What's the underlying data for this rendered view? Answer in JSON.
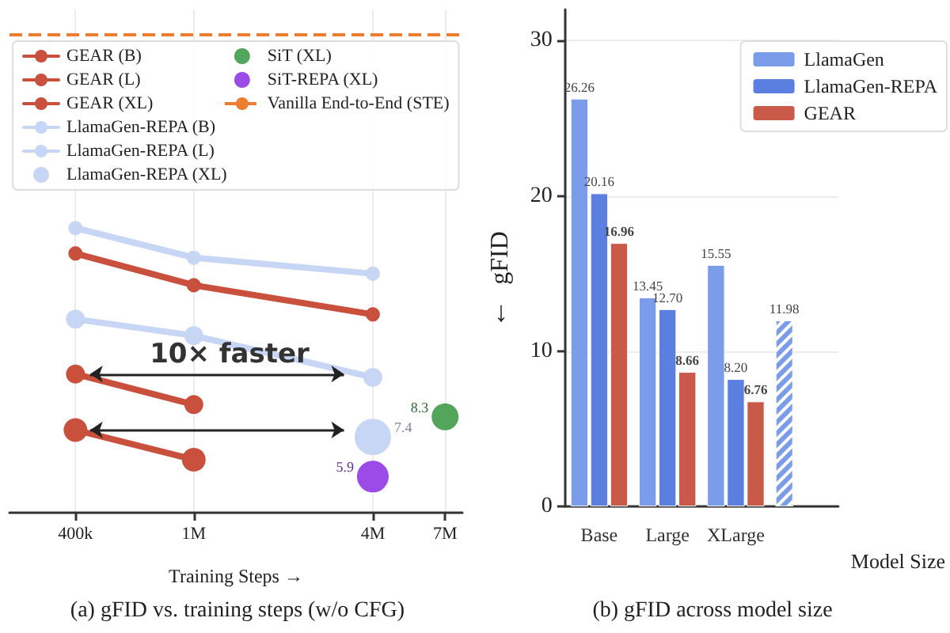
{
  "chart_data": [
    {
      "type": "line",
      "title": "(a) gFID vs. training steps (w/o CFG)",
      "xlabel": "Training Steps →",
      "log": "xy",
      "ylim": [
        4.8,
        85
      ],
      "tick_labels": "x",
      "xlim": [
        240000,
        8000000
      ],
      "xticks": [
        {
          "value": 400000,
          "label": "400k"
        },
        {
          "value": 1000000,
          "label": "1M"
        },
        {
          "value": 4000000,
          "label": "4M"
        },
        {
          "value": 7000000,
          "label": "7M"
        }
      ],
      "grid": "x",
      "legend": "top",
      "marker": "circle",
      "line_style": "solid",
      "annotations": [
        "10× faster"
      ],
      "ref_lines": [
        {
          "axis": "y",
          "value": 73.8,
          "label": "Vanilla End-to-End (STE)",
          "color": "#ee7d31",
          "line_style": "dashed"
        }
      ],
      "series": [
        {
          "name": "GEAR (B)",
          "color": "#c9503c",
          "x": [
            400000,
            1000000,
            4000000
          ],
          "values": [
            21.1,
            17.6,
            14.9
          ]
        },
        {
          "name": "GEAR (L)",
          "color": "#c9503c",
          "x": [
            400000,
            1000000
          ],
          "values": [
            10.6,
            8.9
          ]
        },
        {
          "name": "GEAR (XL)",
          "color": "#c9503c",
          "x": [
            400000,
            1000000
          ],
          "values": [
            7.7,
            6.5
          ]
        },
        {
          "name": "LlamaGen-REPA (B)",
          "color": "#c8d6f5",
          "x": [
            400000,
            1000000,
            4000000
          ],
          "values": [
            24.4,
            20.6,
            18.8
          ]
        },
        {
          "name": "LlamaGen-REPA (L)",
          "color": "#c8d6f5",
          "x": [
            400000,
            1000000,
            4000000
          ],
          "values": [
            14.5,
            13.2,
            10.4
          ]
        },
        {
          "name": "LlamaGen-REPA (XL)",
          "color": "#c8d6f5",
          "type": "scatter",
          "x": [
            4000000
          ],
          "values": [
            7.4
          ],
          "value_labels": [
            "7.4"
          ]
        },
        {
          "name": "SiT (XL)",
          "color": "#52a55a",
          "type": "scatter",
          "x": [
            7000000
          ],
          "values": [
            8.3
          ],
          "value_labels": [
            "8.3"
          ]
        },
        {
          "name": "SiT-REPA (XL)",
          "color": "#9b4be8",
          "type": "scatter",
          "x": [
            4000000
          ],
          "values": [
            5.9
          ],
          "value_labels": [
            "5.9"
          ]
        }
      ]
    },
    {
      "type": "bar",
      "title": "(b) gFID across model size",
      "xlabel": "Model Size",
      "ylabel": "gFID",
      "annotations": [
        "↓"
      ],
      "categories": [
        "Base",
        "Large",
        "XLarge",
        null
      ],
      "ylim": [
        0,
        32
      ],
      "yticks": [
        0,
        10,
        20,
        30
      ],
      "grid": "y",
      "legend": "top right",
      "series": [
        {
          "name": "LlamaGen",
          "color": "#7b9ce8",
          "values": [
            26.26,
            13.45,
            15.55,
            null
          ],
          "value_labels": [
            "26.26",
            "13.45",
            "15.55",
            null
          ]
        },
        {
          "name": "LlamaGen-REPA",
          "color": "#5a7fe0",
          "values": [
            20.16,
            12.7,
            8.2,
            null
          ],
          "value_labels": [
            "20.16",
            "12.70",
            "8.20",
            null
          ]
        },
        {
          "name": "GEAR",
          "color": "#c95a4a",
          "values": [
            16.96,
            8.66,
            6.76,
            null
          ],
          "value_labels": [
            "16.96",
            "8.66",
            "6.76",
            null
          ]
        },
        {
          "color": "#7b9ce8",
          "values": [
            null,
            null,
            null,
            11.98
          ],
          "value_labels": [
            null,
            null,
            null,
            "11.98"
          ]
        }
      ]
    }
  ]
}
